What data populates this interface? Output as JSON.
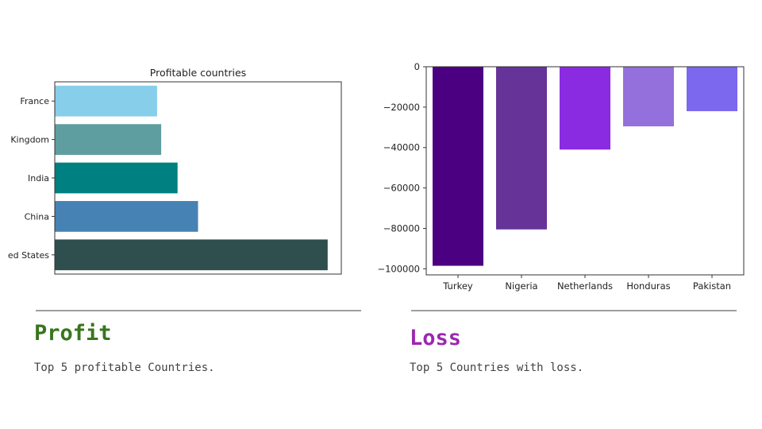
{
  "profit_section": {
    "heading": "Profit",
    "heading_color": "#38761d",
    "caption": "Top 5 profitable Countries."
  },
  "loss_section": {
    "heading": "Loss",
    "heading_color": "#9c27b0",
    "caption": "Top 5 Countries with loss."
  },
  "chart_data": [
    {
      "type": "bar",
      "orientation": "horizontal",
      "title": "Profitable countries",
      "categories": [
        "ed States",
        "China",
        "India",
        "Kingdom",
        "France"
      ],
      "values": [
        100,
        52.5,
        45,
        39,
        37.5
      ],
      "colors": [
        "#2f4f4f",
        "#4682b4",
        "#008080",
        "#5f9ea0",
        "#87ceeb"
      ],
      "xlim": [
        0,
        105
      ],
      "grid": false
    },
    {
      "type": "bar",
      "orientation": "vertical",
      "title": "",
      "categories": [
        "Turkey",
        "Nigeria",
        "Netherlands",
        "Honduras",
        "Pakistan"
      ],
      "values": [
        -98500,
        -80500,
        -41000,
        -29500,
        -22000
      ],
      "colors": [
        "#4b0082",
        "#663399",
        "#8a2be2",
        "#9370db",
        "#7b68ee"
      ],
      "ylim": [
        -103000,
        0
      ],
      "yticks": [
        0,
        -20000,
        -40000,
        -60000,
        -80000,
        -100000
      ],
      "grid": false
    }
  ]
}
